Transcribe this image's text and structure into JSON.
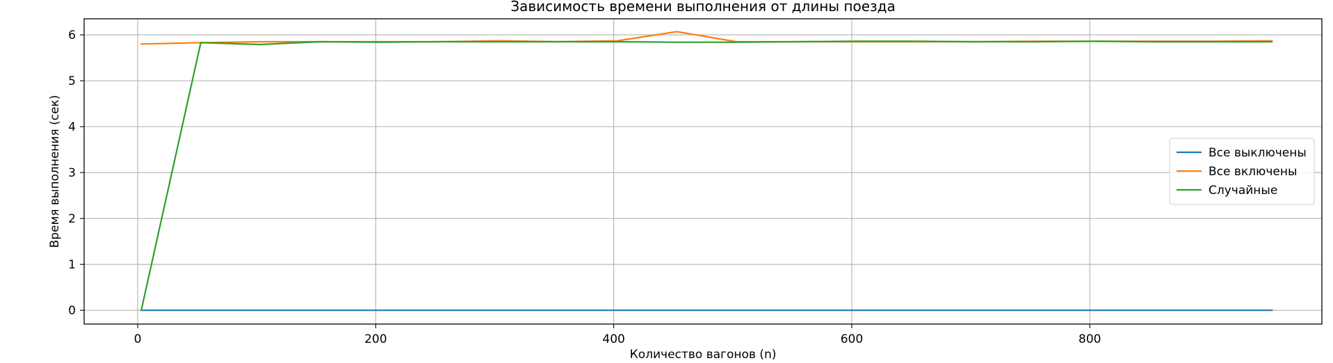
{
  "chart_data": {
    "type": "line",
    "title": "Зависимость времени выполнения от длины поезда",
    "xlabel": "Количество вагонов (n)",
    "ylabel": "Время выполнения (сек)",
    "xlim": [
      -45,
      995
    ],
    "ylim": [
      -0.3,
      6.35
    ],
    "xticks": [
      0,
      200,
      400,
      600,
      800
    ],
    "yticks": [
      0,
      1,
      2,
      3,
      4,
      5,
      6
    ],
    "grid": true,
    "legend_position": "center-right",
    "x": [
      3,
      53,
      103,
      153,
      203,
      253,
      303,
      353,
      403,
      453,
      503,
      553,
      603,
      653,
      703,
      753,
      803,
      853,
      903,
      953
    ],
    "series": [
      {
        "name": "Все выключены",
        "color": "#1f77b4",
        "values": [
          0.0,
          0.0,
          0.0,
          0.0,
          0.0,
          0.0,
          0.0,
          0.0,
          0.0,
          0.0,
          0.0,
          0.0,
          0.0,
          0.0,
          0.0,
          0.0,
          0.0,
          0.0,
          0.0,
          0.0
        ]
      },
      {
        "name": "Все включены",
        "color": "#ff7f0e",
        "values": [
          5.8,
          5.83,
          5.85,
          5.85,
          5.85,
          5.85,
          5.87,
          5.85,
          5.87,
          6.07,
          5.85,
          5.85,
          5.85,
          5.85,
          5.85,
          5.86,
          5.86,
          5.86,
          5.86,
          5.87
        ]
      },
      {
        "name": "Случайные",
        "color": "#2ca02c",
        "values": [
          0.0,
          5.83,
          5.79,
          5.85,
          5.84,
          5.85,
          5.85,
          5.85,
          5.85,
          5.84,
          5.84,
          5.85,
          5.86,
          5.86,
          5.85,
          5.85,
          5.86,
          5.85,
          5.85,
          5.85
        ]
      }
    ]
  }
}
